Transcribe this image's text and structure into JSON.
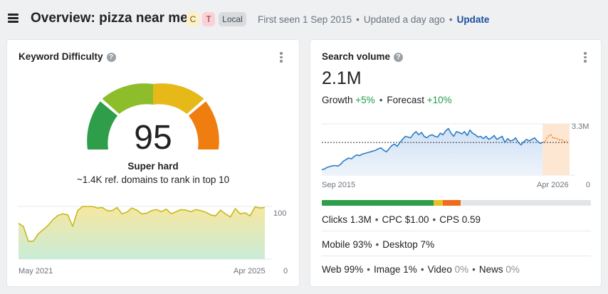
{
  "header": {
    "title": "Overview: pizza near me",
    "tags": [
      "C",
      "T",
      "Local"
    ],
    "first_seen": "First seen 1 Sep 2015",
    "updated": "Updated a day ago",
    "update_link": "Update",
    "separator": "•"
  },
  "kd_card": {
    "title": "Keyword Difficulty",
    "help": "?",
    "value": "95",
    "label": "Super hard",
    "description": "~1.4K ref. domains to rank in top 10",
    "chart": {
      "x_start": "May 2021",
      "x_end": "Apr 2025",
      "y_max": "100",
      "y_min": "0",
      "values": [
        68,
        62,
        34,
        34,
        48,
        56,
        64,
        75,
        83,
        86,
        84,
        62,
        92,
        100,
        100,
        100,
        97,
        98,
        92,
        92,
        98,
        86,
        89,
        97,
        93,
        86,
        87,
        92,
        94,
        90,
        95,
        86,
        90,
        94,
        93,
        90,
        94,
        92,
        89,
        84,
        82,
        93,
        86,
        80,
        96,
        86,
        88,
        82,
        99,
        97,
        98
      ]
    },
    "colors": {
      "gauge": [
        "#2e9e4a",
        "#8dbd2b",
        "#e6b818",
        "#f07d10"
      ]
    }
  },
  "sv_card": {
    "title": "Search volume",
    "help": "?",
    "value": "2.1M",
    "growth_label": "Growth",
    "growth_value": "+5%",
    "forecast_label": "Forecast",
    "forecast_value": "+10%",
    "separator": "•",
    "chart": {
      "x_start": "Sep 2015",
      "x_end": "Apr 2026",
      "y_max": "3.3M",
      "y_min": "0",
      "reference_value": 2.1,
      "history": [
        0.35,
        0.4,
        0.5,
        0.55,
        0.6,
        0.62,
        0.58,
        0.7,
        0.9,
        1.0,
        1.1,
        1.05,
        1.2,
        1.3,
        1.25,
        1.35,
        1.4,
        1.45,
        1.5,
        1.55,
        1.6,
        1.7,
        1.75,
        1.6,
        1.5,
        1.7,
        1.9,
        2.0,
        1.85,
        2.1,
        2.3,
        2.5,
        2.45,
        2.4,
        2.65,
        2.8,
        2.6,
        2.75,
        2.5,
        2.4,
        2.55,
        2.6,
        2.5,
        2.45,
        2.7,
        2.6,
        2.85,
        3.0,
        2.7,
        2.5,
        2.8,
        2.75,
        2.65,
        2.8,
        2.55,
        2.9,
        2.7,
        2.6,
        2.45,
        2.5,
        2.35,
        2.5,
        2.3,
        2.4,
        2.55,
        2.3,
        2.4,
        2.5,
        2.1,
        2.35,
        2.2,
        2.25,
        2.4,
        2.1,
        1.95,
        2.15,
        2.3,
        2.2,
        2.3,
        2.4,
        2.2,
        2.05,
        2.1
      ],
      "forecast": [
        2.1,
        2.2,
        2.5,
        2.6,
        2.35,
        2.4,
        2.25,
        2.3,
        2.15,
        2.2
      ]
    },
    "distribution": [
      {
        "name": "clicks",
        "percent": 41.5,
        "color": "#2e9e4a"
      },
      {
        "name": "other",
        "percent": 3.5,
        "color": "#e6c02a"
      },
      {
        "name": "no-clicks",
        "percent": 6.5,
        "color": "#f06a1a"
      }
    ],
    "stats_row1": {
      "clicks": "Clicks 1.3M",
      "cpc": "CPC $1.00",
      "cps": "CPS 0.59"
    },
    "stats_row2": {
      "mobile": "Mobile 93%",
      "desktop": "Desktop 7%"
    },
    "stats_row3": {
      "web": "Web 99%",
      "image": "Image 1%",
      "video_label": "Video",
      "video_value": "0%",
      "news_label": "News",
      "news_value": "0%"
    }
  }
}
